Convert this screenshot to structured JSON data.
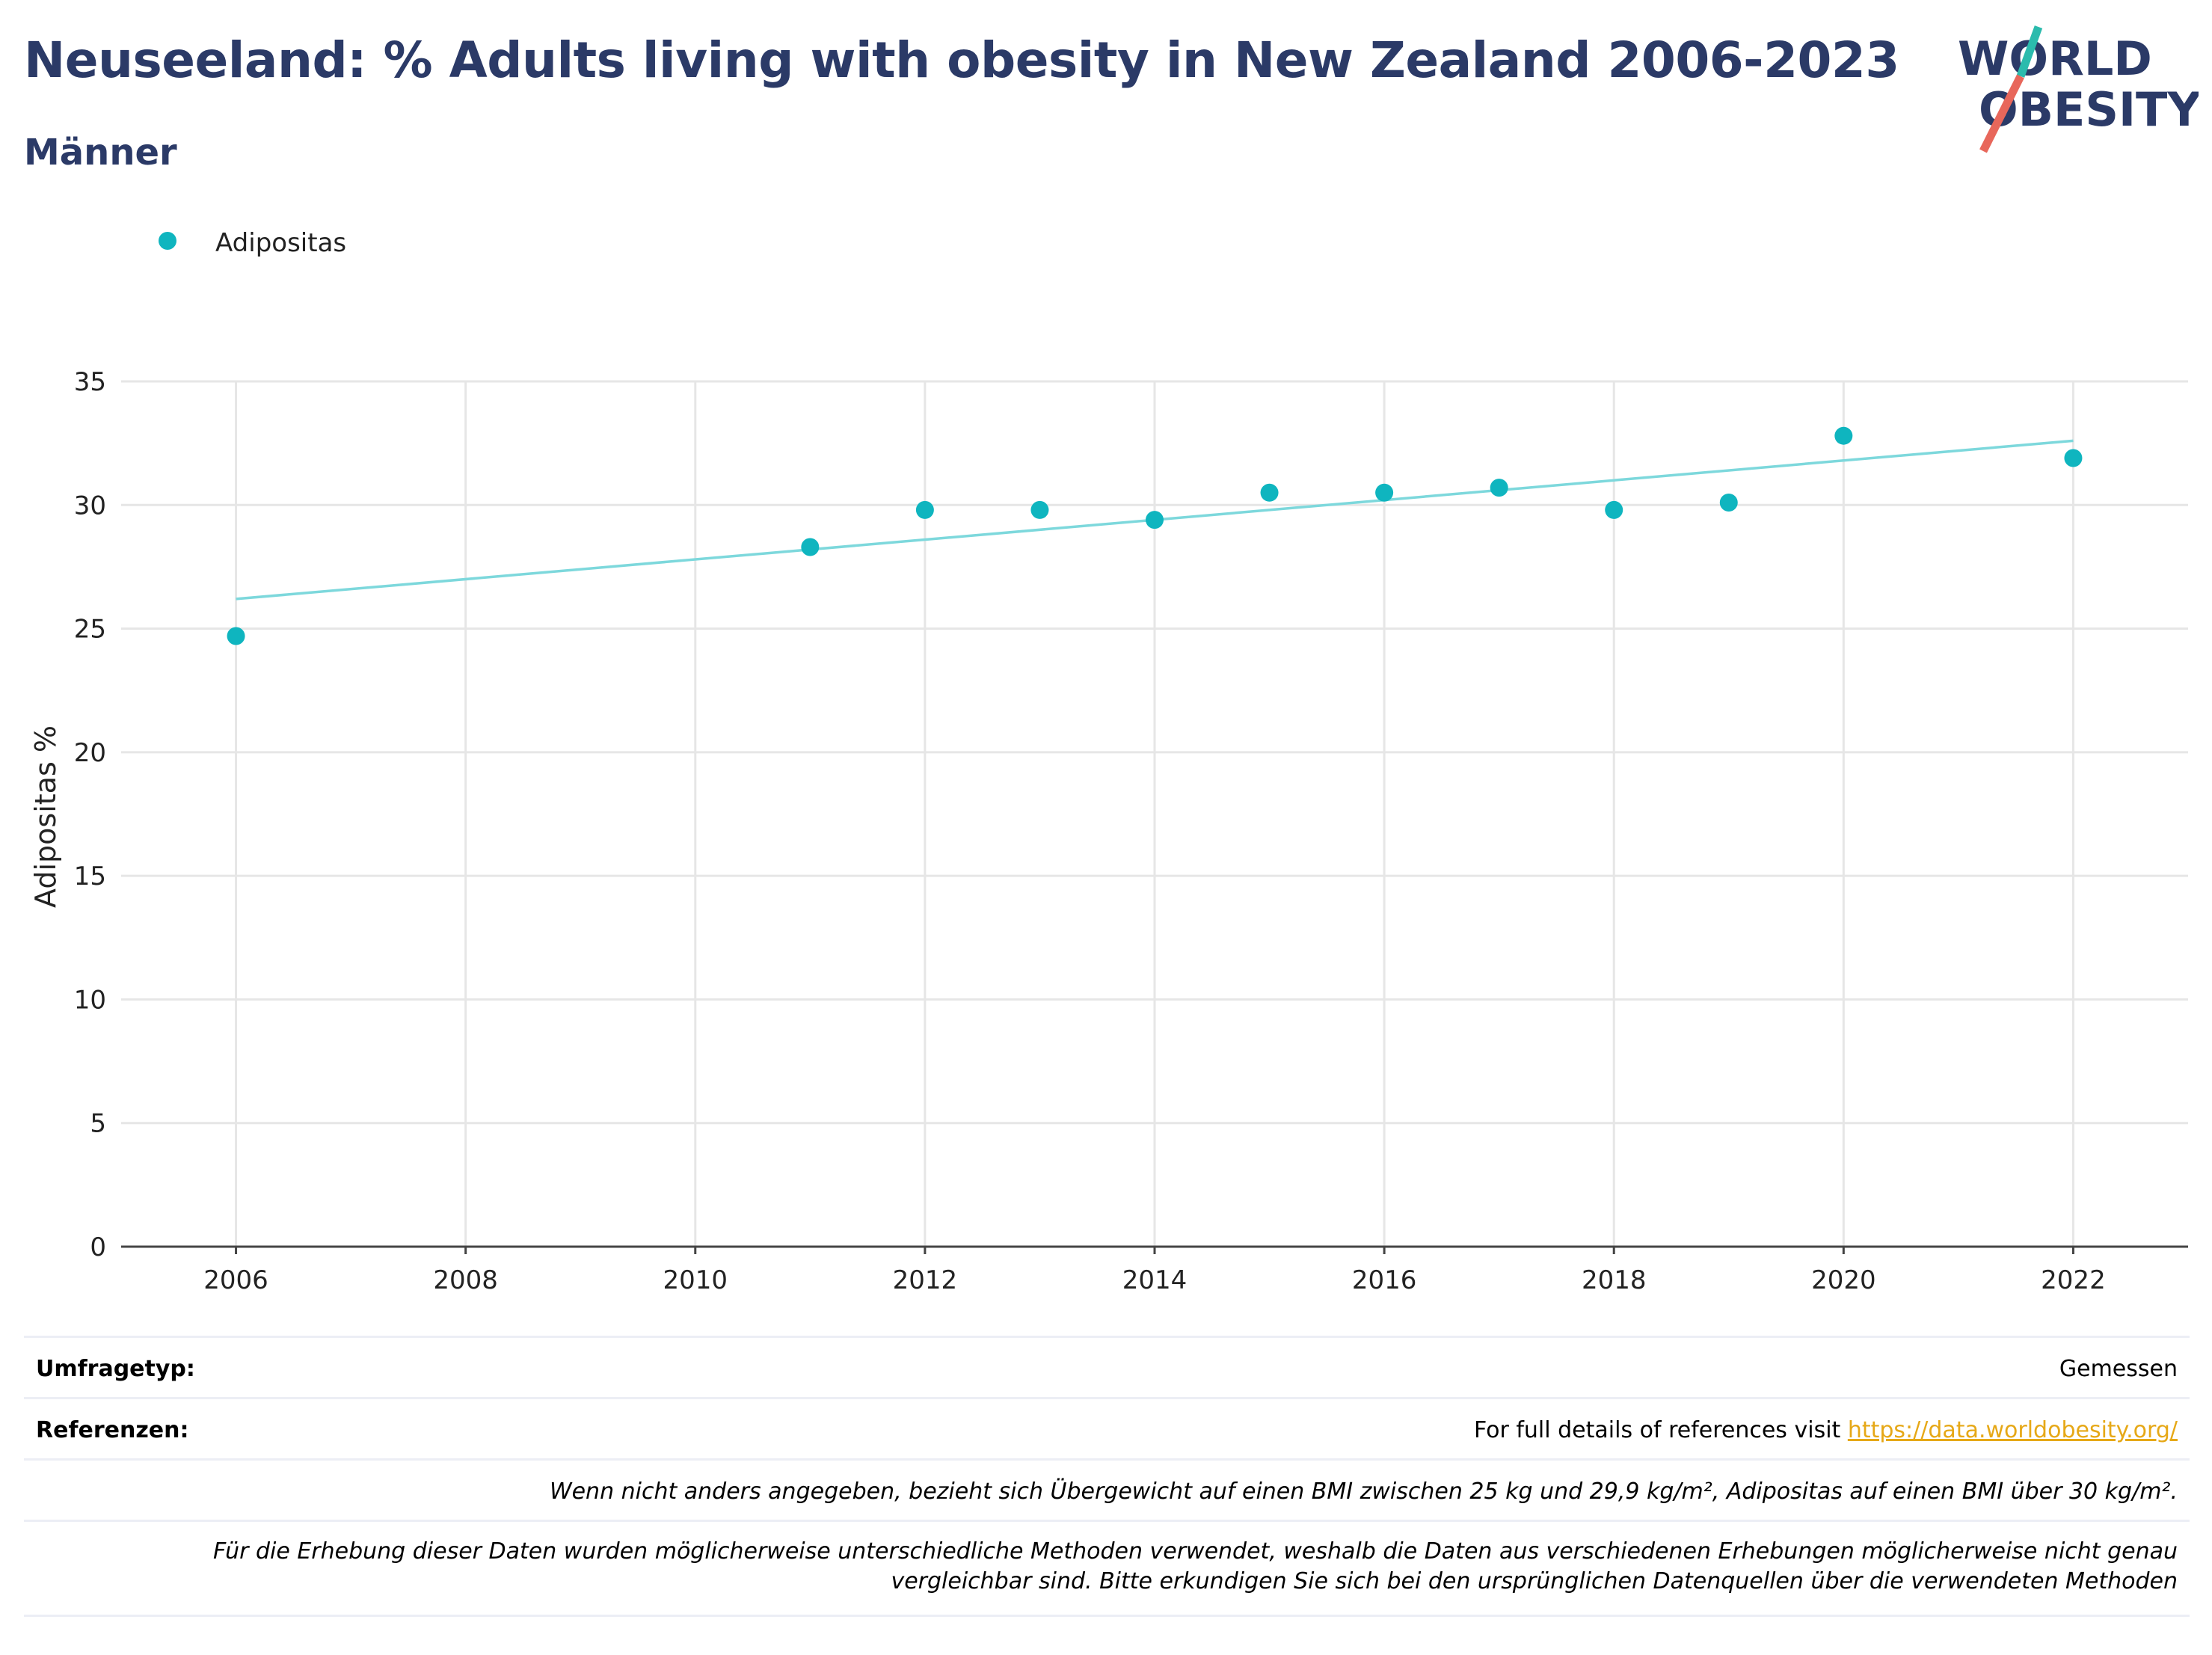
{
  "header": {
    "title": "Neuseeland: % Adults living with obesity in New Zealand 2006-2023",
    "subtitle": "Männer"
  },
  "logo": {
    "line1": "WORLD",
    "line2": "OBESITY",
    "text_color": "#2b3a67",
    "slash_top_color": "#2bbbad",
    "slash_bottom_color": "#e8675b"
  },
  "chart_data": {
    "type": "scatter",
    "xlabel": "",
    "ylabel": "Adipositas %",
    "xlim": [
      2005.0,
      2023.0
    ],
    "ylim": [
      0,
      35
    ],
    "xticks": [
      2006,
      2008,
      2010,
      2012,
      2014,
      2016,
      2018,
      2020,
      2022
    ],
    "yticks": [
      0,
      5,
      10,
      15,
      20,
      25,
      30,
      35
    ],
    "grid": true,
    "legend_position": "top-left",
    "series": [
      {
        "name": "Adipositas",
        "color": "#0fb5bf",
        "x": [
          2006,
          2011,
          2012,
          2013,
          2014,
          2015,
          2016,
          2017,
          2018,
          2019,
          2020,
          2022
        ],
        "y": [
          24.7,
          28.3,
          29.8,
          29.8,
          29.4,
          30.5,
          30.5,
          30.7,
          29.8,
          30.1,
          32.8,
          31.9
        ]
      }
    ],
    "trendline": {
      "color": "#7dd8dc",
      "x": [
        2006,
        2022
      ],
      "y": [
        26.2,
        32.6
      ]
    }
  },
  "footer": {
    "survey_label": "Umfragetyp:",
    "survey_value": "Gemessen",
    "references_label": "Referenzen:",
    "references_text": "For full details of references visit ",
    "references_link": "https://data.worldobesity.org/",
    "note1": "Wenn nicht anders angegeben, bezieht sich Übergewicht auf einen BMI zwischen 25 kg und 29,9 kg/m², Adipositas auf einen BMI über 30 kg/m².",
    "note2_line1": "Für die Erhebung dieser Daten wurden möglicherweise unterschiedliche Methoden verwendet, weshalb die Daten aus verschiedenen Erhebungen möglicherweise nicht genau",
    "note2_line2": "vergleichbar sind. Bitte erkundigen Sie sich bei den ursprünglichen Datenquellen über die verwendeten Methoden"
  }
}
